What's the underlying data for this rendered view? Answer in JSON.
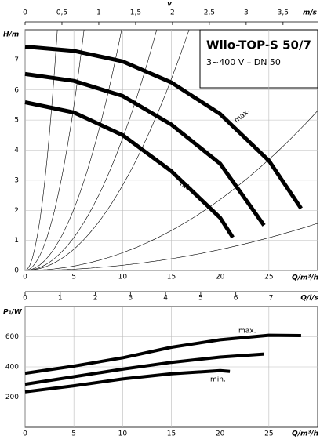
{
  "chart_data": [
    {
      "type": "line",
      "title": "Wilo-TOP-S 50/7",
      "subtitle": "3~400 V – DN 50",
      "x_label": "Q/m³/h",
      "y_label": "H/m",
      "top_axis_label": "v",
      "top_axis_unit": "m/s",
      "x2lim": [
        0,
        3.97
      ],
      "x2ticks": [
        0,
        {
          "value": 0.5,
          "label": "0,5"
        },
        1,
        {
          "value": 1.5,
          "label": "1,5"
        },
        2,
        {
          "value": 2.5,
          "label": "2,5"
        },
        3,
        {
          "value": 3.5,
          "label": "3,5"
        }
      ],
      "xlim": [
        0,
        30
      ],
      "xticks": [
        0,
        5,
        10,
        15,
        20,
        25
      ],
      "ylim": [
        0,
        8
      ],
      "yticks": [
        0,
        1,
        2,
        3,
        4,
        5,
        6,
        7
      ],
      "grid": true,
      "series": [
        {
          "color": "#000000",
          "x": [
            0,
            5,
            10,
            15,
            20,
            25,
            28.3
          ],
          "values": [
            7.44,
            7.3,
            6.95,
            6.25,
            5.2,
            3.65,
            2.06
          ]
        },
        {
          "color": "#000000",
          "x": [
            0,
            5,
            10,
            15,
            20,
            24.5
          ],
          "values": [
            6.53,
            6.3,
            5.8,
            4.85,
            3.55,
            1.5
          ]
        },
        {
          "color": "#000000",
          "x": [
            0,
            5,
            10,
            15,
            20,
            21.3
          ],
          "values": [
            5.59,
            5.25,
            4.5,
            3.3,
            1.75,
            1.1
          ]
        }
      ],
      "annotations": [
        "max.",
        "min."
      ],
      "resistance_curves": [
        0.73,
        0.219,
        0.0816,
        0.0439,
        0.0283,
        0.0059,
        0.00174
      ]
    },
    {
      "type": "line",
      "x_label": "Q/m³/h",
      "y_label": "P₁/W",
      "top_axis_label": "Q/l/s",
      "x2lim": [
        0,
        8.33
      ],
      "x2ticks": [
        0,
        1,
        2,
        3,
        4,
        5,
        6,
        7
      ],
      "xlim": [
        0,
        30
      ],
      "xticks": [
        0,
        5,
        10,
        15,
        20,
        25
      ],
      "ylim": [
        0,
        800
      ],
      "yticks": [
        200,
        400,
        600
      ],
      "grid": true,
      "series": [
        {
          "color": "#000000",
          "x": [
            0,
            5,
            10,
            15,
            20,
            25,
            28.3
          ],
          "values": [
            358,
            405,
            460,
            530,
            580,
            610,
            608
          ]
        },
        {
          "color": "#000000",
          "x": [
            0,
            5,
            10,
            15,
            20,
            24.5
          ],
          "values": [
            285,
            335,
            385,
            430,
            465,
            485
          ]
        },
        {
          "color": "#000000",
          "x": [
            0,
            5,
            10,
            15,
            20,
            21
          ],
          "values": [
            235,
            275,
            320,
            355,
            375,
            370
          ]
        }
      ],
      "annotations": [
        "max.",
        "min."
      ]
    }
  ]
}
